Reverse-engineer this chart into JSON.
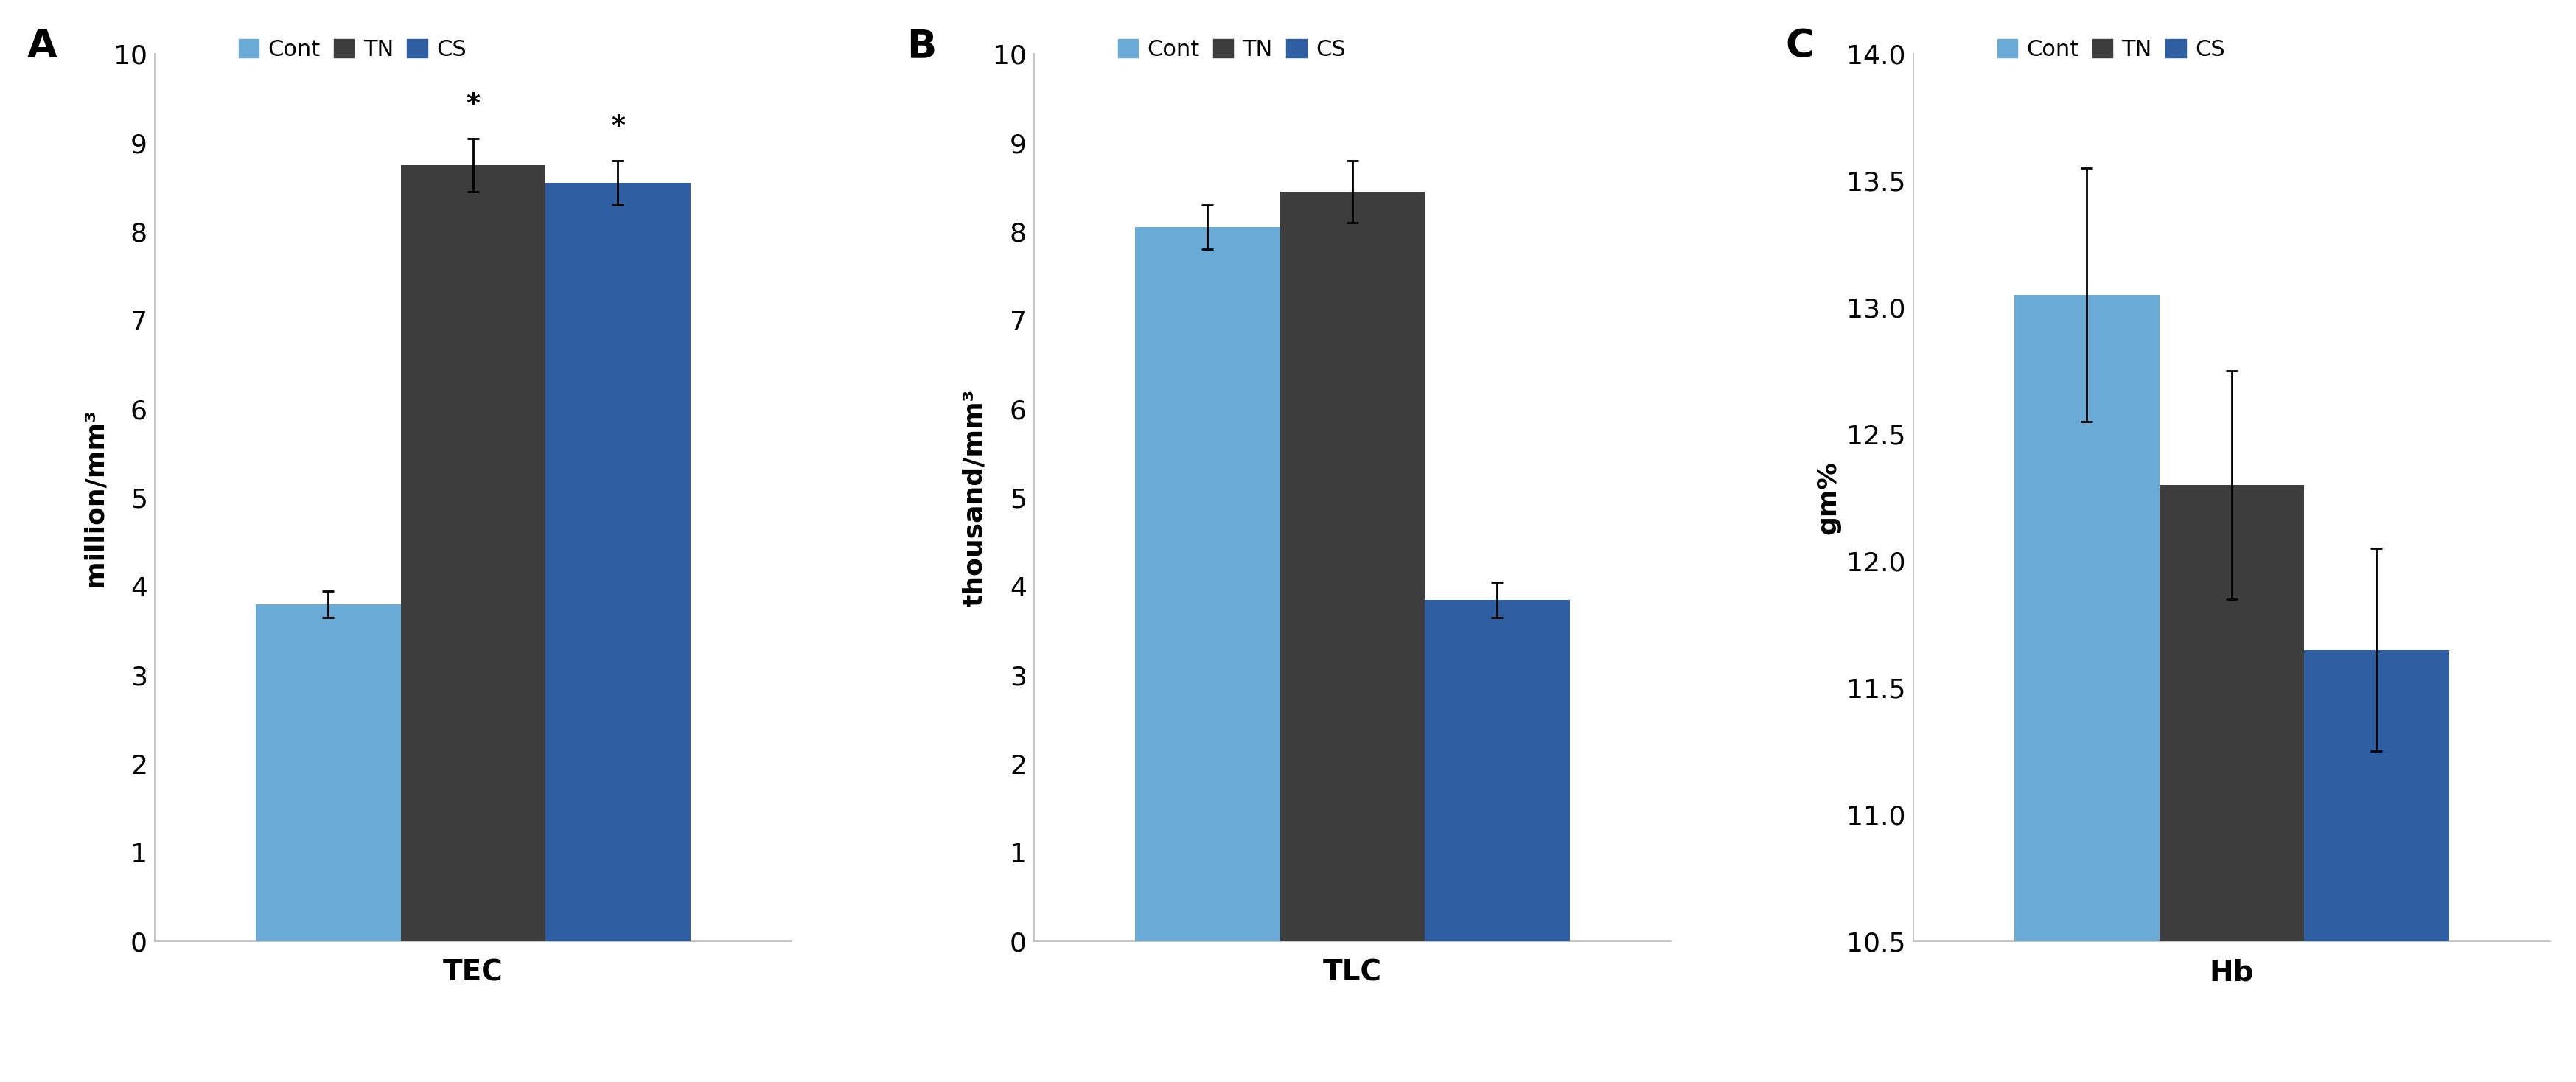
{
  "panel_A": {
    "label": "A",
    "title": "TEC",
    "ylabel": "million/mm³",
    "ylim": [
      0,
      10
    ],
    "yticks": [
      0,
      1,
      2,
      3,
      4,
      5,
      6,
      7,
      8,
      9,
      10
    ],
    "values": [
      3.8,
      8.75,
      8.55
    ],
    "errors": [
      0.15,
      0.3,
      0.25
    ],
    "colors": [
      "#6aaad4",
      "#3d3d3d",
      "#2e5fa3"
    ],
    "sig": [
      false,
      true,
      true
    ]
  },
  "panel_B": {
    "label": "B",
    "title": "TLC",
    "ylabel": "thousand/mm³",
    "ylim": [
      0,
      10
    ],
    "yticks": [
      0,
      1,
      2,
      3,
      4,
      5,
      6,
      7,
      8,
      9,
      10
    ],
    "values": [
      8.05,
      8.45,
      3.85
    ],
    "errors": [
      0.25,
      0.35,
      0.2
    ],
    "colors": [
      "#6aaad4",
      "#3d3d3d",
      "#2e5fa3"
    ],
    "sig": [
      false,
      false,
      false
    ]
  },
  "panel_C": {
    "label": "C",
    "title": "Hb",
    "ylabel": "gm%",
    "ylim": [
      10.5,
      14
    ],
    "yticks": [
      10.5,
      11,
      11.5,
      12,
      12.5,
      13,
      13.5,
      14
    ],
    "values": [
      13.05,
      12.3,
      11.65
    ],
    "errors": [
      0.5,
      0.45,
      0.4
    ],
    "colors": [
      "#6aaad4",
      "#3d3d3d",
      "#2e5fa3"
    ],
    "sig": [
      false,
      false,
      false
    ]
  },
  "legend_labels": [
    "Cont",
    "TN",
    "CS"
  ],
  "legend_colors": [
    "#6aaad4",
    "#3d3d3d",
    "#2e5fa3"
  ],
  "bar_width": 0.25,
  "tick_fontsize": 26,
  "ylabel_fontsize": 26,
  "xlabel_fontsize": 28,
  "legend_fontsize": 22,
  "panel_label_fontsize": 38,
  "sig_fontsize": 26
}
